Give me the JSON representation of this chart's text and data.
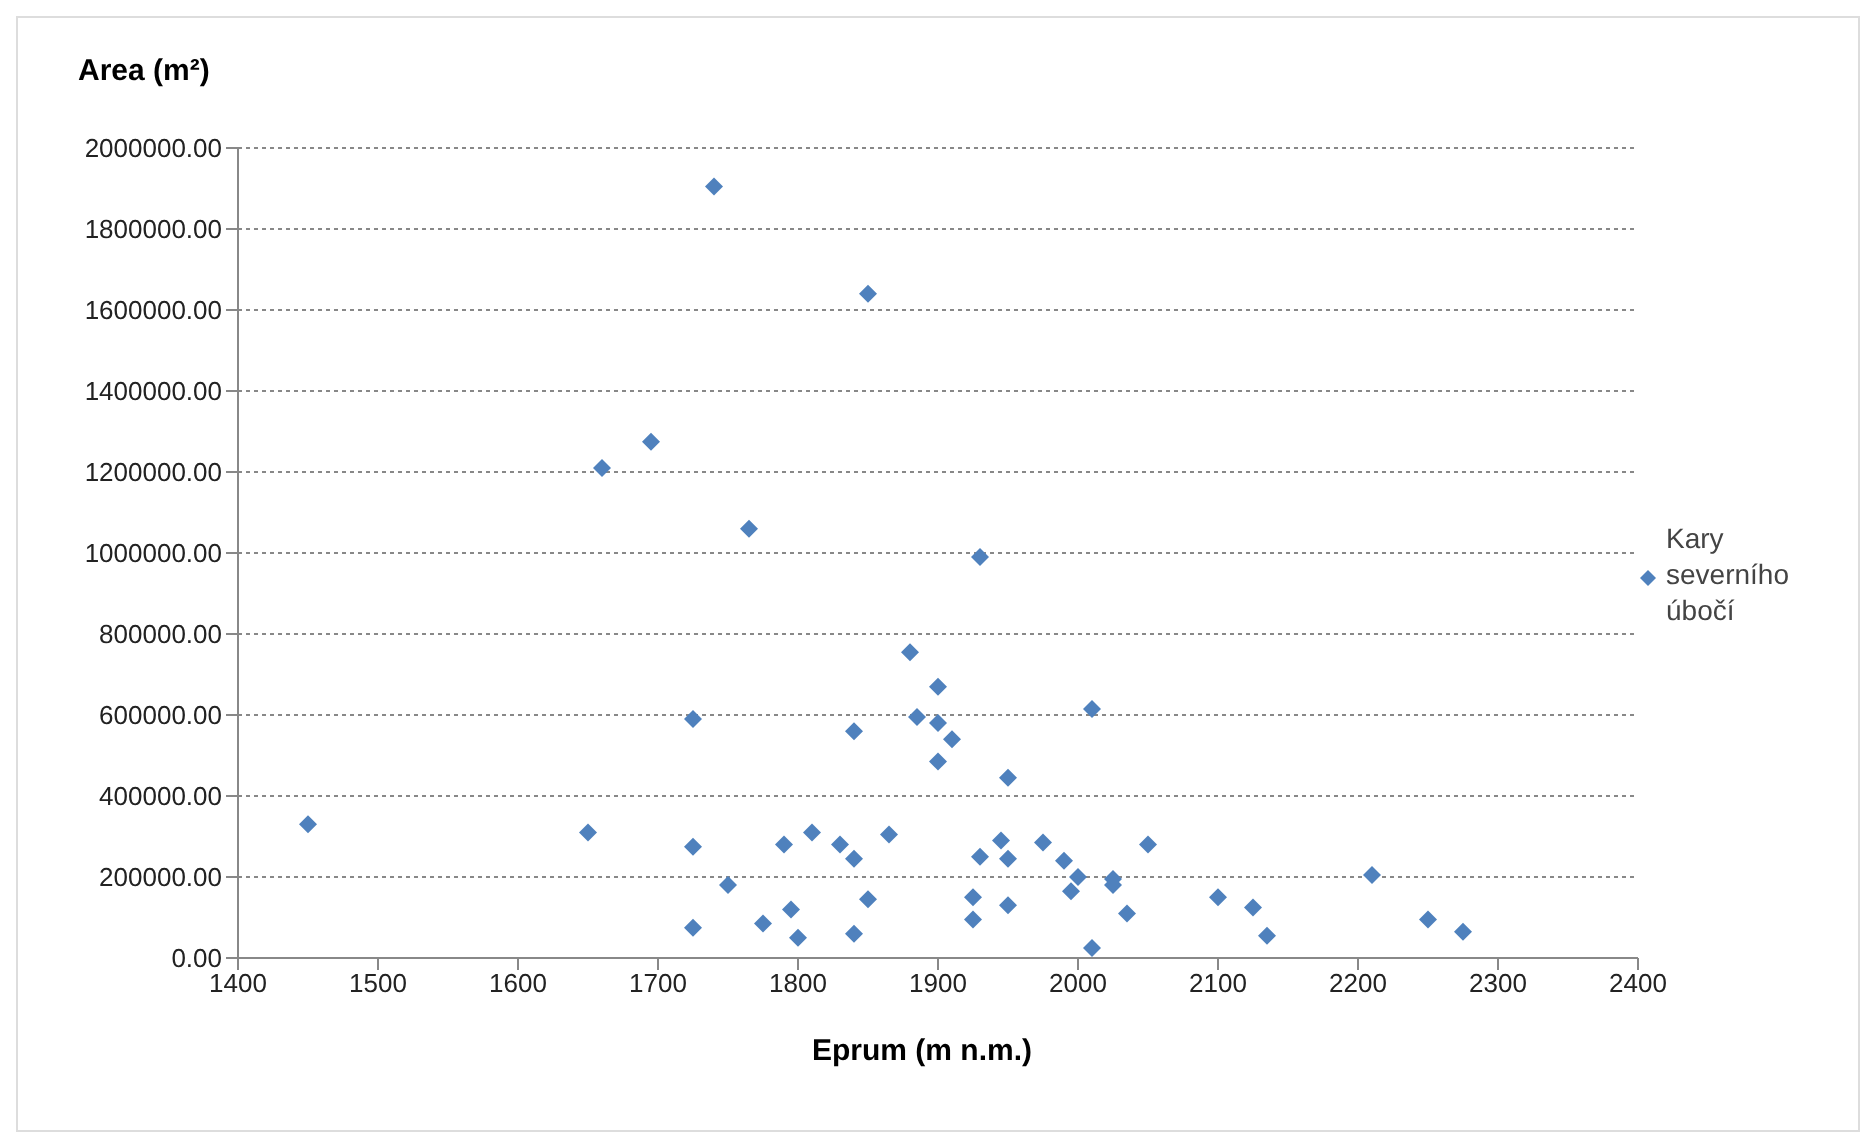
{
  "chart_data": {
    "type": "scatter",
    "xlabel": "Eprum (m n.m.)",
    "ylabel": "Area (m²)",
    "xlim": [
      1400,
      2400
    ],
    "xticks": [
      1400,
      1500,
      1600,
      1700,
      1800,
      1900,
      2000,
      2100,
      2200,
      2300,
      2400
    ],
    "ylim": [
      0,
      2000000
    ],
    "yticks": [
      {
        "value": 0,
        "label": "0.00"
      },
      {
        "value": 200000,
        "label": "200000.00"
      },
      {
        "value": 400000,
        "label": "400000.00"
      },
      {
        "value": 600000,
        "label": "600000.00"
      },
      {
        "value": 800000,
        "label": "800000.00"
      },
      {
        "value": 1000000,
        "label": "1000000.00"
      },
      {
        "value": 1200000,
        "label": "1200000.00"
      },
      {
        "value": 1400000,
        "label": "1400000.00"
      },
      {
        "value": 1600000,
        "label": "1600000.00"
      },
      {
        "value": 1800000,
        "label": "1800000.00"
      },
      {
        "value": 2000000,
        "label": "2000000.00"
      }
    ],
    "grid": "y",
    "legend": "right",
    "marker": "diamond",
    "series": [
      {
        "name": "Kary severního úbočí",
        "color": "#4f81bd",
        "x": [
          1450,
          1650,
          1660,
          1695,
          1725,
          1725,
          1725,
          1740,
          1750,
          1765,
          1775,
          1790,
          1795,
          1800,
          1810,
          1830,
          1840,
          1840,
          1840,
          1850,
          1850,
          1865,
          1880,
          1885,
          1900,
          1900,
          1900,
          1910,
          1925,
          1925,
          1930,
          1930,
          1945,
          1950,
          1950,
          1950,
          1975,
          1990,
          1995,
          2000,
          2010,
          2010,
          2025,
          2025,
          2035,
          2050,
          2100,
          2125,
          2135,
          2210,
          2250,
          2275
        ],
        "values": [
          330000,
          310000,
          1210000,
          1275000,
          590000,
          275000,
          75000,
          1905000,
          180000,
          1060000,
          85000,
          280000,
          120000,
          50000,
          310000,
          280000,
          560000,
          245000,
          60000,
          1640000,
          145000,
          305000,
          755000,
          595000,
          670000,
          580000,
          485000,
          540000,
          150000,
          95000,
          990000,
          250000,
          290000,
          445000,
          245000,
          130000,
          285000,
          240000,
          165000,
          200000,
          615000,
          25000,
          195000,
          180000,
          110000,
          280000,
          150000,
          125000,
          55000,
          205000,
          95000,
          65000
        ]
      }
    ]
  }
}
